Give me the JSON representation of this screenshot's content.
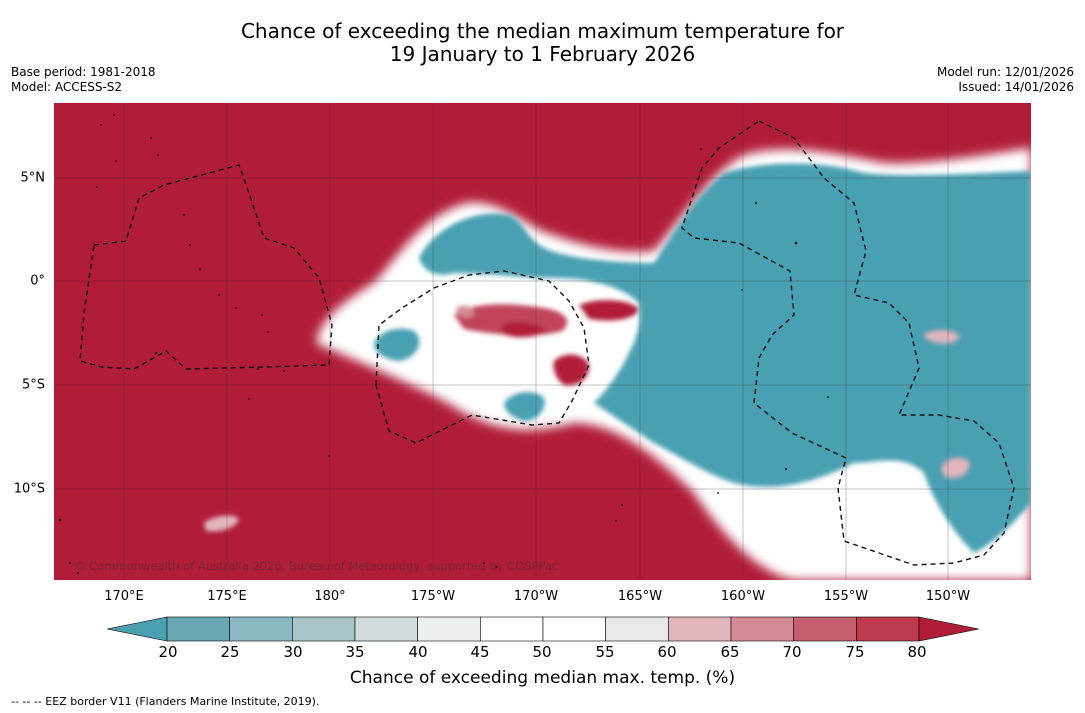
{
  "header": {
    "title_line1": "Chance of exceeding the median maximum temperature for",
    "title_line2": "19 January to 1 February 2026",
    "base_period": "Base period: 1981-2018",
    "model": "Model: ACCESS-S2",
    "model_run": "Model run: 12/01/2026",
    "issued": "Issued: 14/01/2026"
  },
  "map": {
    "copyright": "© Commonwealth of Australia 2026, Bureau of Meteorology, supported by COSPPac",
    "lon_labels": [
      "170°E",
      "175°E",
      "180°",
      "175°W",
      "170°W",
      "165°W",
      "160°W",
      "155°W",
      "150°W"
    ],
    "lat_labels": [
      "5°N",
      "0°",
      "5°S",
      "10°S"
    ]
  },
  "colorbar": {
    "ticks": [
      "20",
      "25",
      "30",
      "35",
      "40",
      "45",
      "50",
      "55",
      "60",
      "65",
      "70",
      "75",
      "80"
    ],
    "label": "Chance of exceeding median max. temp. (%)",
    "colors": [
      "#4aa0b2",
      "#6aa9b4",
      "#8bb9c3",
      "#aac5c9",
      "#d1dbde",
      "#edf1f4",
      "#ffffff",
      "#ffffff",
      "#e8e8e8",
      "#e1b6bd",
      "#d48b94",
      "#c55f6d",
      "#bd3b4c",
      "#b11d39"
    ]
  },
  "legend": {
    "text": "-- -- -- EEZ border V11 (Flanders Marine Institute, 2019)."
  }
}
